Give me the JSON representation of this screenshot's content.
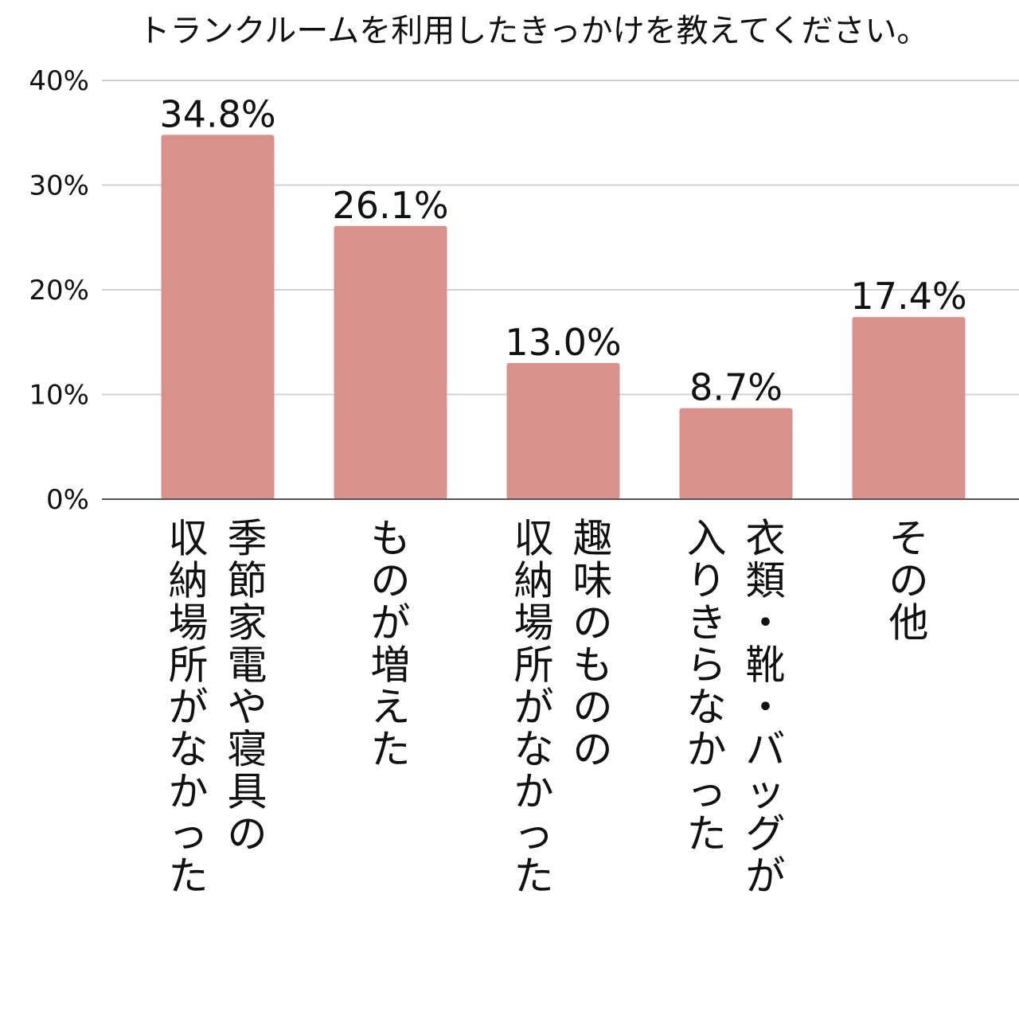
{
  "chart_data": {
    "type": "bar",
    "title": "トランクルームを利用したきっかけを教えてください。",
    "categories": [
      [
        "季節家電や寝具の",
        "収納場所がなかった"
      ],
      [
        "ものが増えた"
      ],
      [
        "趣味のものの",
        "収納場所がなかった"
      ],
      [
        "衣類・靴・バッグが",
        "入りきらなかった"
      ],
      [
        "その他"
      ]
    ],
    "values": [
      34.8,
      26.1,
      13.0,
      8.7,
      17.4
    ],
    "value_labels": [
      "34.8%",
      "26.1%",
      "13.0%",
      "8.7%",
      "17.4%"
    ],
    "ylim": [
      0,
      40
    ],
    "yticks": [
      0,
      10,
      20,
      30,
      40
    ],
    "ytick_labels": [
      "0%",
      "10%",
      "20%",
      "30%",
      "40%"
    ],
    "xlabel": "",
    "ylabel": "",
    "grid": true,
    "bar_color": "#d9918c",
    "grid_color": "#d0d0d0",
    "axis_color": "#555555"
  }
}
